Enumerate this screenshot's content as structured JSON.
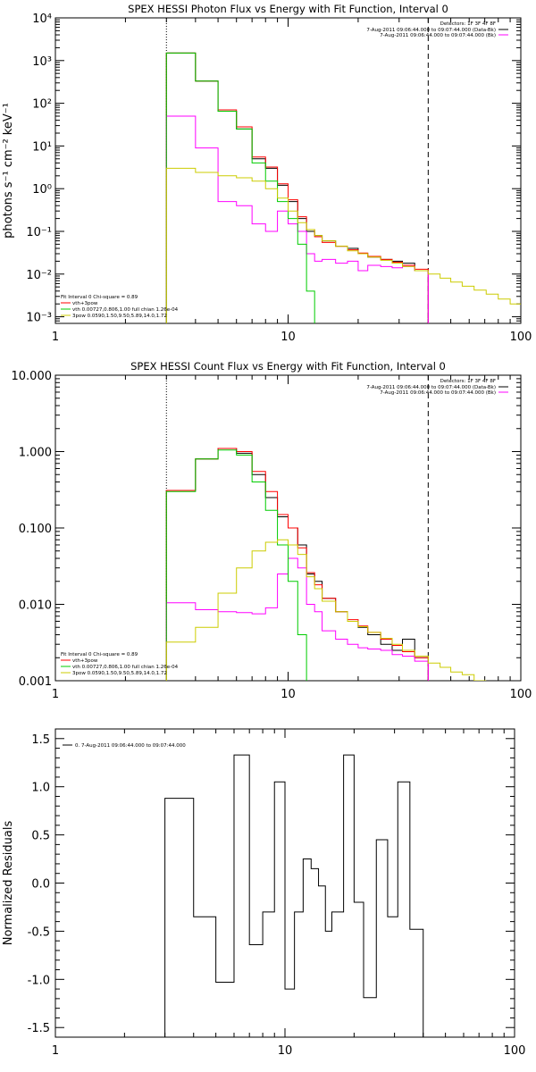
{
  "chart_data": [
    {
      "type": "line",
      "step": true,
      "title": "SPEX HESSI Photon Flux vs Energy with Fit Function, Interval 0",
      "xlabel": "",
      "ylabel": "photons s⁻¹ cm⁻² keV⁻¹",
      "xscale": "log",
      "yscale": "log",
      "xlim": [
        1,
        100
      ],
      "ylim": [
        0.0007,
        10000
      ],
      "x_tick_labels": [
        "1",
        "10",
        "100"
      ],
      "y_tick_labels": [
        "10⁻³",
        "10⁻²",
        "10⁻¹",
        "10⁰",
        "10¹",
        "10²",
        "10³",
        "10⁴"
      ],
      "vlines": [
        {
          "x": 3.0,
          "style": "dotted"
        },
        {
          "x": 40.0,
          "style": "dashed"
        }
      ],
      "legend_top_right": {
        "heading": "Detectors: 1F 3F 4F 8F",
        "entries": [
          {
            "label": "7-Aug-2011 09:06:44.000 to 09:07:44.000 (Data-Bk)",
            "color": "#000000"
          },
          {
            "label": "7-Aug-2011 09:06:44.000 to 09:07:44.000 (Bk)",
            "color": "#ff00ff"
          }
        ]
      },
      "legend_bottom_left": {
        "heading": "Fit Interval 0   Chi-square = 0.89",
        "entries": [
          {
            "label": "vth+3pow",
            "color": "#ff0000"
          },
          {
            "label": "vth 0.00727,0.806,1.00   full chian 1.26e-04",
            "color": "#00cc00"
          },
          {
            "label": "3pow 0.0590,1.50,9.50,5.89,14.0,1.72",
            "color": "#cccc00"
          }
        ]
      },
      "edges": [
        3.0,
        4.0,
        5.0,
        6.0,
        7.0,
        8.0,
        9.0,
        10.0,
        11.0,
        12.0,
        13.0,
        14.0,
        16.0,
        18.0,
        20.0,
        22.0,
        25.0,
        28.0,
        31.0,
        35.0,
        40.0
      ],
      "series": [
        {
          "name": "Data-Bk",
          "color": "#000000",
          "edges_ref": true,
          "values": [
            1500,
            330,
            65,
            25,
            5.0,
            3.0,
            1.2,
            0.5,
            0.2,
            0.1,
            0.08,
            0.06,
            0.045,
            0.04,
            0.03,
            0.025,
            0.022,
            0.02,
            0.018,
            0.012
          ]
        },
        {
          "name": "vth+3pow",
          "color": "#ff0000",
          "edges_ref": true,
          "values": [
            1500,
            330,
            70,
            28,
            5.5,
            3.2,
            1.3,
            0.55,
            0.22,
            0.11,
            0.075,
            0.055,
            0.045,
            0.037,
            0.031,
            0.026,
            0.022,
            0.019,
            0.016,
            0.013
          ]
        },
        {
          "name": "Bk",
          "color": "#ff00ff",
          "edges_ref": true,
          "values": [
            50,
            9,
            0.5,
            0.4,
            0.15,
            0.1,
            0.3,
            0.15,
            0.1,
            0.03,
            0.02,
            0.022,
            0.018,
            0.02,
            0.012,
            0.016,
            0.015,
            0.014,
            0.015,
            0.012
          ]
        },
        {
          "name": "vth",
          "color": "#00cc00",
          "edges": [
            3.0,
            4.0,
            5.0,
            6.0,
            7.0,
            8.0,
            9.0,
            10.0,
            11.0,
            12.0,
            13.0
          ],
          "values": [
            1500,
            330,
            65,
            25,
            4.0,
            1.5,
            0.5,
            0.2,
            0.05,
            0.004
          ]
        },
        {
          "name": "3pow",
          "color": "#cccc00",
          "edges": [
            3.0,
            4.0,
            5.0,
            6.0,
            7.0,
            8.0,
            9.0,
            10.0,
            11.0,
            12.0,
            13.0,
            14.0,
            16.0,
            18.0,
            20.0,
            22.0,
            25.0,
            28.0,
            31.0,
            35.0,
            40.0,
            45.0,
            50.0,
            56.0,
            63.0,
            71.0,
            80.0,
            90.0,
            100.0
          ],
          "values": [
            3.0,
            2.4,
            2.0,
            1.8,
            1.5,
            1.0,
            0.6,
            0.3,
            0.16,
            0.11,
            0.08,
            0.06,
            0.045,
            0.035,
            0.03,
            0.025,
            0.021,
            0.018,
            0.015,
            0.012,
            0.01,
            0.008,
            0.0065,
            0.0052,
            0.0042,
            0.0034,
            0.0026,
            0.002
          ]
        }
      ]
    },
    {
      "type": "line",
      "step": true,
      "title": "SPEX HESSI Count Flux vs Energy with Fit Function, Interval 0",
      "xlabel": "",
      "ylabel": "",
      "xscale": "log",
      "yscale": "log",
      "xlim": [
        1,
        100
      ],
      "ylim": [
        0.001,
        10
      ],
      "x_tick_labels": [
        "1",
        "10",
        "100"
      ],
      "y_tick_labels": [
        "0.001",
        "0.010",
        "0.100",
        "1.000",
        "10.000"
      ],
      "vlines": [
        {
          "x": 3.0,
          "style": "dotted"
        },
        {
          "x": 40.0,
          "style": "dashed"
        }
      ],
      "legend_top_right": {
        "heading": "Detectors: 1F 3F 4F 8F",
        "entries": [
          {
            "label": "7-Aug-2011 09:06:44.000 to 09:07:44.000 (Data-Bk)",
            "color": "#000000"
          },
          {
            "label": "7-Aug-2011 09:06:44.000 to 09:07:44.000 (Bk)",
            "color": "#ff00ff"
          }
        ]
      },
      "legend_bottom_left": {
        "heading": "Fit Interval 0   Chi-square = 0.89",
        "entries": [
          {
            "label": "vth+3pow",
            "color": "#ff0000"
          },
          {
            "label": "vth 0.00727,0.806,1.00   full chian 1.26e-04",
            "color": "#00cc00"
          },
          {
            "label": "3pow 0.0590,1.50,9.50,5.89,14.0,1.72",
            "color": "#cccc00"
          }
        ]
      },
      "series": [
        {
          "name": "Data-Bk",
          "color": "#000000",
          "edges": [
            3.0,
            4.0,
            5.0,
            6.0,
            7.0,
            8.0,
            9.0,
            10.0,
            11.0,
            12.0,
            13.0,
            14.0,
            16.0,
            18.0,
            20.0,
            22.0,
            25.0,
            28.0,
            31.0,
            35.0,
            40.0
          ],
          "values": [
            0.31,
            0.8,
            1.1,
            0.95,
            0.5,
            0.25,
            0.14,
            0.1,
            0.06,
            0.025,
            0.02,
            0.012,
            0.008,
            0.006,
            0.005,
            0.004,
            0.003,
            0.0025,
            0.0035,
            0.002
          ]
        },
        {
          "name": "vth+3pow",
          "color": "#ff0000",
          "edges": [
            3.0,
            4.0,
            5.0,
            6.0,
            7.0,
            8.0,
            9.0,
            10.0,
            11.0,
            12.0,
            13.0,
            14.0,
            16.0,
            18.0,
            20.0,
            22.0,
            25.0,
            28.0,
            31.0,
            35.0,
            40.0
          ],
          "values": [
            0.31,
            0.8,
            1.1,
            1.0,
            0.55,
            0.3,
            0.15,
            0.1,
            0.055,
            0.026,
            0.018,
            0.012,
            0.008,
            0.0063,
            0.0052,
            0.0043,
            0.0035,
            0.0029,
            0.0024,
            0.002
          ]
        },
        {
          "name": "Bk",
          "color": "#ff00ff",
          "edges": [
            3.0,
            4.0,
            5.0,
            6.0,
            7.0,
            8.0,
            9.0,
            10.0,
            11.0,
            12.0,
            13.0,
            14.0,
            16.0,
            18.0,
            20.0,
            22.0,
            25.0,
            28.0,
            31.0,
            35.0,
            40.0
          ],
          "values": [
            0.0105,
            0.0085,
            0.008,
            0.0078,
            0.0075,
            0.009,
            0.025,
            0.04,
            0.03,
            0.01,
            0.008,
            0.0045,
            0.0035,
            0.003,
            0.0027,
            0.0026,
            0.0025,
            0.0022,
            0.0021,
            0.0018
          ]
        },
        {
          "name": "vth",
          "color": "#00cc00",
          "edges": [
            3.0,
            4.0,
            5.0,
            6.0,
            7.0,
            8.0,
            9.0,
            10.0,
            11.0,
            12.0
          ],
          "values": [
            0.3,
            0.8,
            1.05,
            0.9,
            0.4,
            0.17,
            0.06,
            0.02,
            0.004
          ]
        },
        {
          "name": "3pow",
          "color": "#cccc00",
          "edges": [
            3.0,
            4.0,
            5.0,
            6.0,
            7.0,
            8.0,
            9.0,
            10.0,
            11.0,
            12.0,
            13.0,
            14.0,
            16.0,
            18.0,
            20.0,
            22.0,
            25.0,
            28.0,
            31.0,
            35.0,
            40.0,
            45.0,
            50.0,
            56.0,
            63.0,
            71.0
          ],
          "values": [
            0.0032,
            0.005,
            0.014,
            0.03,
            0.05,
            0.065,
            0.07,
            0.06,
            0.045,
            0.023,
            0.016,
            0.011,
            0.008,
            0.006,
            0.0051,
            0.0043,
            0.0036,
            0.003,
            0.0025,
            0.0021,
            0.0017,
            0.0015,
            0.0013,
            0.0012,
            0.001
          ]
        }
      ]
    },
    {
      "type": "line",
      "step": true,
      "title": "",
      "xlabel": "",
      "ylabel": "Normalized Residuals",
      "xscale": "log",
      "yscale": "linear",
      "xlim": [
        1,
        100
      ],
      "ylim": [
        -1.6,
        1.6
      ],
      "x_tick_labels": [
        "1",
        "10",
        "100"
      ],
      "y_tick_labels": [
        "-1.5",
        "-1.0",
        "-0.5",
        "0.0",
        "0.5",
        "1.0",
        "1.5"
      ],
      "legend_top_left": {
        "entries": [
          {
            "label": "0. 7-Aug-2011 09:06:44.000 to 09:07:44.000",
            "color": "#000000"
          }
        ]
      },
      "series": [
        {
          "name": "0. 7-Aug-2011 09:06:44.000 to 09:07:44.000",
          "color": "#000000",
          "edges": [
            3.0,
            4.0,
            5.0,
            6.0,
            7.0,
            8.0,
            9.0,
            10.0,
            11.0,
            12.0,
            13.0,
            14.0,
            15.0,
            16.0,
            18.0,
            20.0,
            22.0,
            25.0,
            28.0,
            31.0,
            35.0,
            40.0
          ],
          "values": [
            0.88,
            -0.35,
            -1.03,
            1.33,
            -0.64,
            -0.3,
            1.05,
            -1.1,
            -0.3,
            0.25,
            0.15,
            -0.03,
            -0.5,
            -0.3,
            1.33,
            -0.2,
            -1.19,
            0.45,
            -0.35,
            1.05,
            -0.48
          ]
        }
      ]
    }
  ]
}
